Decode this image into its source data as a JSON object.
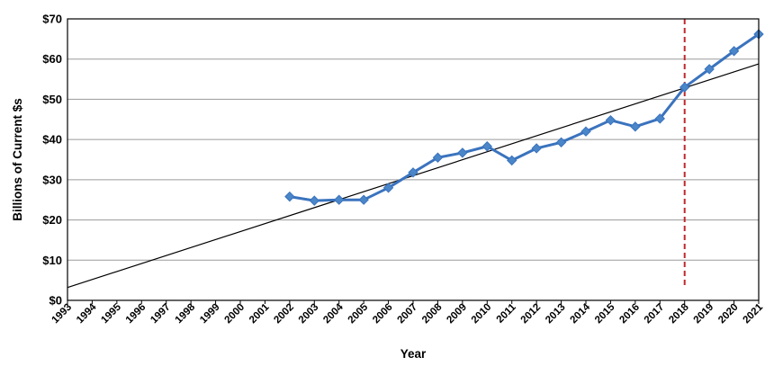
{
  "chart_data": {
    "type": "line",
    "xlabel": "Year",
    "ylabel": "Billions of Current $s",
    "x_categories": [
      "1993",
      "1994",
      "1995",
      "1996",
      "1997",
      "1998",
      "1999",
      "2000",
      "2001",
      "2002",
      "2003",
      "2004",
      "2005",
      "2006",
      "2007",
      "2008",
      "2009",
      "2010",
      "2011",
      "2012",
      "2013",
      "2014",
      "2015",
      "2016",
      "2017",
      "2018",
      "2019",
      "2020",
      "2021"
    ],
    "y_ticks": [
      "$0",
      "$10",
      "$20",
      "$30",
      "$40",
      "$50",
      "$60",
      "$70"
    ],
    "ylim": [
      0,
      70
    ],
    "grid": "horizontal",
    "legend": "none",
    "series": [
      {
        "x": [
          "2002",
          "2003",
          "2004",
          "2005",
          "2006",
          "2007",
          "2008",
          "2009",
          "2010",
          "2011",
          "2012",
          "2013",
          "2014",
          "2015",
          "2016",
          "2017",
          "2018",
          "2019",
          "2020",
          "2021"
        ],
        "values": [
          25.8,
          24.8,
          25.0,
          25.0,
          28.0,
          31.8,
          35.5,
          36.7,
          38.3,
          34.8,
          37.8,
          39.3,
          42.0,
          44.8,
          43.2,
          45.2,
          53.0,
          57.5,
          62.0,
          66.2
        ],
        "color": "#3a73be",
        "marker": "diamond",
        "marker_color": "#4a86c8"
      }
    ],
    "trendline": {
      "x_start": "1993",
      "y_start": 3.2,
      "x_end": "2021",
      "y_end": 58.8,
      "color": "#000000"
    },
    "reference_line": {
      "x": "2018",
      "color": "#c0282d",
      "style": "dashed"
    }
  }
}
